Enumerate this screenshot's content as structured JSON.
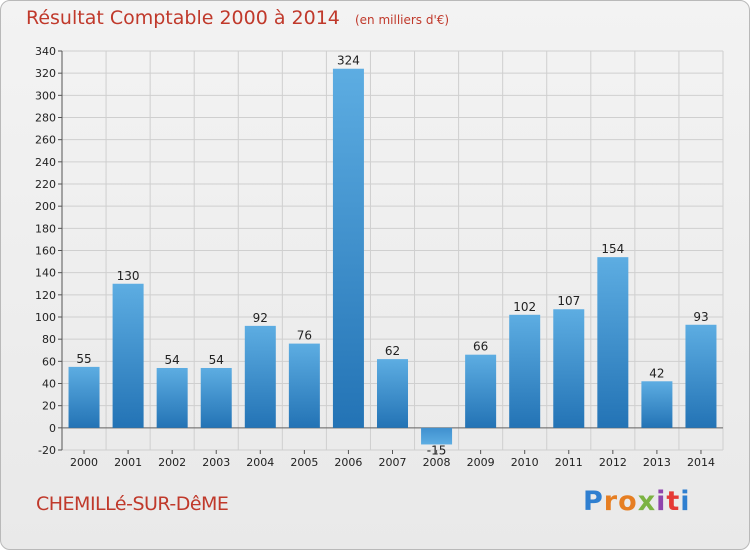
{
  "title": "Résultat Comptable 2000 à 2014",
  "subtitle": "(en milliers d'€)",
  "commune": "CHEMILLé-SUR-DêME",
  "logo": {
    "text": "Proxiti",
    "letter_colors": [
      "#2f7fd0",
      "#e67e22",
      "#e67e22",
      "#7cb342",
      "#8e44ad",
      "#e53935",
      "#2f7fd0"
    ]
  },
  "colors": {
    "title": "#c0392b",
    "bar_light": "#5dade2",
    "bar_dark": "#2373b5",
    "grid": "#cfcfcf"
  },
  "chart_data": {
    "type": "bar",
    "title": "Résultat Comptable 2000 à 2014",
    "subtitle": "(en milliers d'€)",
    "categories": [
      "2000",
      "2001",
      "2002",
      "2003",
      "2004",
      "2005",
      "2006",
      "2007",
      "2008",
      "2009",
      "2010",
      "2011",
      "2012",
      "2013",
      "2014"
    ],
    "values": [
      55,
      130,
      54,
      54,
      92,
      76,
      324,
      62,
      -15,
      66,
      102,
      107,
      154,
      42,
      93
    ],
    "value_labels": [
      "55",
      "130",
      "54",
      "54",
      "92",
      "76",
      "324",
      "62",
      "-15",
      "66",
      "102",
      "107",
      "154",
      "42",
      "93"
    ],
    "ylim": [
      -20,
      340
    ],
    "yticks": [
      -20,
      0,
      20,
      40,
      60,
      80,
      100,
      120,
      140,
      160,
      180,
      200,
      220,
      240,
      260,
      280,
      300,
      320,
      340
    ],
    "ytick_labels": [
      "-20",
      "0",
      "20",
      "40",
      "60",
      "80",
      "100",
      "120",
      "140",
      "160",
      "180",
      "200",
      "220",
      "240",
      "260",
      "280",
      "300",
      "320",
      "340"
    ],
    "grid": true,
    "xlabel": "",
    "ylabel": ""
  }
}
